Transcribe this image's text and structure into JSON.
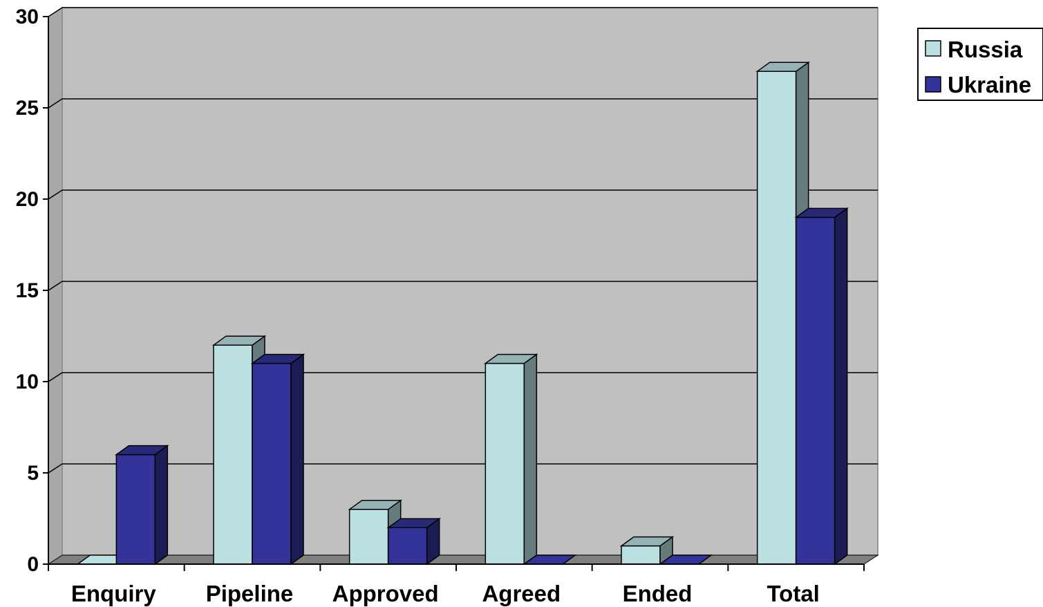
{
  "chart_data": {
    "type": "bar",
    "categories": [
      "Enquiry",
      "Pipeline",
      "Approved",
      "Agreed",
      "Ended",
      "Total"
    ],
    "series": [
      {
        "name": "Russia",
        "values": [
          0,
          12,
          3,
          11,
          1,
          27
        ],
        "color": "#bae0e2"
      },
      {
        "name": "Ukraine",
        "values": [
          6,
          11,
          2,
          0,
          0,
          19
        ],
        "color": "#333399"
      }
    ],
    "ylim": [
      0,
      30
    ],
    "yticks": [
      0,
      5,
      10,
      15,
      20,
      25,
      30
    ],
    "grid": true,
    "style": "3d-column",
    "wall_color": "#c0c0c0",
    "floor_color": "#808080",
    "legend_position": "top-right"
  }
}
